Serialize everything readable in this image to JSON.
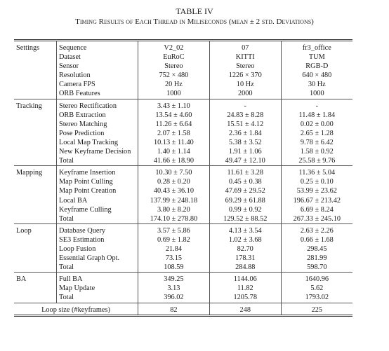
{
  "title": "TABLE IV",
  "caption": "Timing Results of Each Thread in Miliseconds (mean ± 2 std. Deviations)",
  "table": {
    "groups": [
      {
        "name": "Settings",
        "rows": [
          {
            "label": "Sequence",
            "cells": [
              "V2_02",
              "07",
              "fr3_office"
            ]
          },
          {
            "label": "Dataset",
            "cells": [
              "EuRoC",
              "KITTI",
              "TUM"
            ]
          },
          {
            "label": "Sensor",
            "cells": [
              "Stereo",
              "Stereo",
              "RGB-D"
            ]
          },
          {
            "label": "Resolution",
            "cells": [
              "752 × 480",
              "1226 × 370",
              "640 × 480"
            ]
          },
          {
            "label": "Camera FPS",
            "cells": [
              "20 Hz",
              "10 Hz",
              "30 Hz"
            ]
          },
          {
            "label": "ORB Features",
            "cells": [
              "1000",
              "2000",
              "1000"
            ]
          }
        ]
      },
      {
        "name": "Tracking",
        "rows": [
          {
            "label": "Stereo Rectification",
            "cells": [
              "3.43 ± 1.10",
              "-",
              "-"
            ]
          },
          {
            "label": "ORB Extraction",
            "cells": [
              "13.54 ± 4.60",
              "24.83 ± 8.28",
              "11.48 ± 1.84"
            ]
          },
          {
            "label": "Stereo Matching",
            "cells": [
              "11.26 ± 6.64",
              "15.51 ± 4.12",
              "0.02 ± 0.00"
            ]
          },
          {
            "label": "Pose Prediction",
            "cells": [
              "2.07 ± 1.58",
              "2.36 ± 1.84",
              "2.65 ± 1.28"
            ]
          },
          {
            "label": "Local Map Tracking",
            "cells": [
              "10.13 ± 11.40",
              "5.38 ± 3.52",
              "9.78 ± 6.42"
            ]
          },
          {
            "label": "New Keyframe Decision",
            "cells": [
              "1.40 ± 1.14",
              "1.91 ± 1.06",
              "1.58 ± 0.92"
            ]
          },
          {
            "label": "Total",
            "cells": [
              "41.66 ± 18.90",
              "49.47 ± 12.10",
              "25.58 ± 9.76"
            ]
          }
        ]
      },
      {
        "name": "Mapping",
        "rows": [
          {
            "label": "Keyframe Insertion",
            "cells": [
              "10.30 ± 7.50",
              "11.61 ± 3.28",
              "11.36 ± 5.04"
            ]
          },
          {
            "label": "Map Point Culling",
            "cells": [
              "0.28 ± 0.20",
              "0.45 ± 0.38",
              "0.25 ± 0.10"
            ]
          },
          {
            "label": "Map Point Creation",
            "cells": [
              "40.43 ± 36.10",
              "47.69 ± 29.52",
              "53.99 ± 23.62"
            ]
          },
          {
            "label": "Local BA",
            "cells": [
              "137.99 ± 248.18",
              "69.29 ± 61.88",
              "196.67 ± 213.42"
            ]
          },
          {
            "label": "Keyframe Culling",
            "cells": [
              "3.80 ± 8.20",
              "0.99 ± 0.92",
              "6.69 ± 8.24"
            ]
          },
          {
            "label": "Total",
            "cells": [
              "174.10 ± 278.80",
              "129.52 ± 88.52",
              "267.33 ± 245.10"
            ]
          }
        ]
      },
      {
        "name": "Loop",
        "rows": [
          {
            "label": "Database Query",
            "cells": [
              "3.57 ± 5.86",
              "4.13 ± 3.54",
              "2.63 ± 2.26"
            ]
          },
          {
            "label": "SE3 Estimation",
            "cells": [
              "0.69 ± 1.82",
              "1.02 ± 3.68",
              "0.66 ± 1.68"
            ]
          },
          {
            "label": "Loop Fusion",
            "cells": [
              "21.84",
              "82.70",
              "298.45"
            ]
          },
          {
            "label": "Essential Graph Opt.",
            "cells": [
              "73.15",
              "178.31",
              "281.99"
            ]
          },
          {
            "label": "Total",
            "cells": [
              "108.59",
              "284.88",
              "598.70"
            ]
          }
        ]
      },
      {
        "name": "BA",
        "rows": [
          {
            "label": "Full BA",
            "cells": [
              "349.25",
              "1144.06",
              "1640.96"
            ]
          },
          {
            "label": "Map Update",
            "cells": [
              "3.13",
              "11.82",
              "5.62"
            ]
          },
          {
            "label": "Total",
            "cells": [
              "396.02",
              "1205.78",
              "1793.02"
            ]
          }
        ]
      }
    ],
    "footer": {
      "label": "Loop size (#keyframes)",
      "cells": [
        "82",
        "248",
        "225"
      ]
    }
  }
}
